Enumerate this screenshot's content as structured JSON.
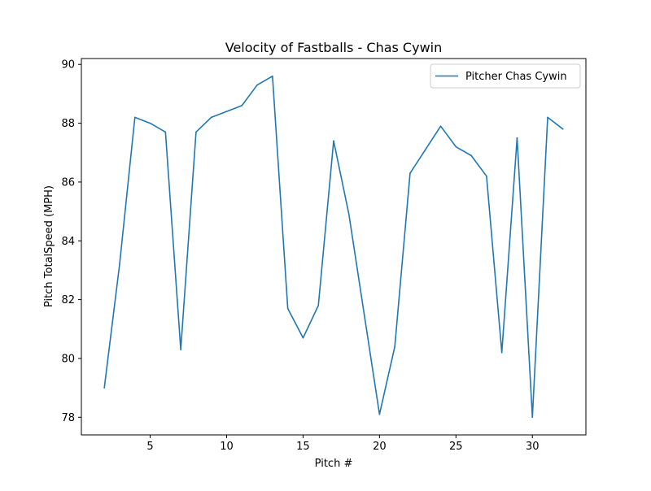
{
  "chart_data": {
    "type": "line",
    "title": "Velocity of Fastballs - Chas Cywin",
    "xlabel": "Pitch #",
    "ylabel": "Pitch TotalSpeed (MPH)",
    "xlim": [
      0.5,
      33.5
    ],
    "ylim": [
      77.4,
      90.2
    ],
    "xticks": [
      5,
      10,
      15,
      20,
      25,
      30
    ],
    "yticks": [
      78,
      80,
      82,
      84,
      86,
      88,
      90
    ],
    "grid": false,
    "legend_position": "top-right",
    "series": [
      {
        "name": "Pitcher Chas Cywin",
        "color": "#1f77b4",
        "x": [
          2,
          3,
          4,
          5,
          6,
          7,
          8,
          9,
          10,
          11,
          12,
          13,
          14,
          15,
          16,
          17,
          18,
          19,
          20,
          21,
          22,
          23,
          24,
          25,
          26,
          27,
          28,
          29,
          30,
          31,
          32
        ],
        "y": [
          79.0,
          83.2,
          88.2,
          88.0,
          87.7,
          80.3,
          87.7,
          88.2,
          88.4,
          88.6,
          89.3,
          89.6,
          81.7,
          80.7,
          81.8,
          87.4,
          84.9,
          81.5,
          78.1,
          80.4,
          86.3,
          87.1,
          87.9,
          87.2,
          86.9,
          86.2,
          80.2,
          87.5,
          78.0,
          88.2,
          87.8
        ]
      }
    ]
  }
}
